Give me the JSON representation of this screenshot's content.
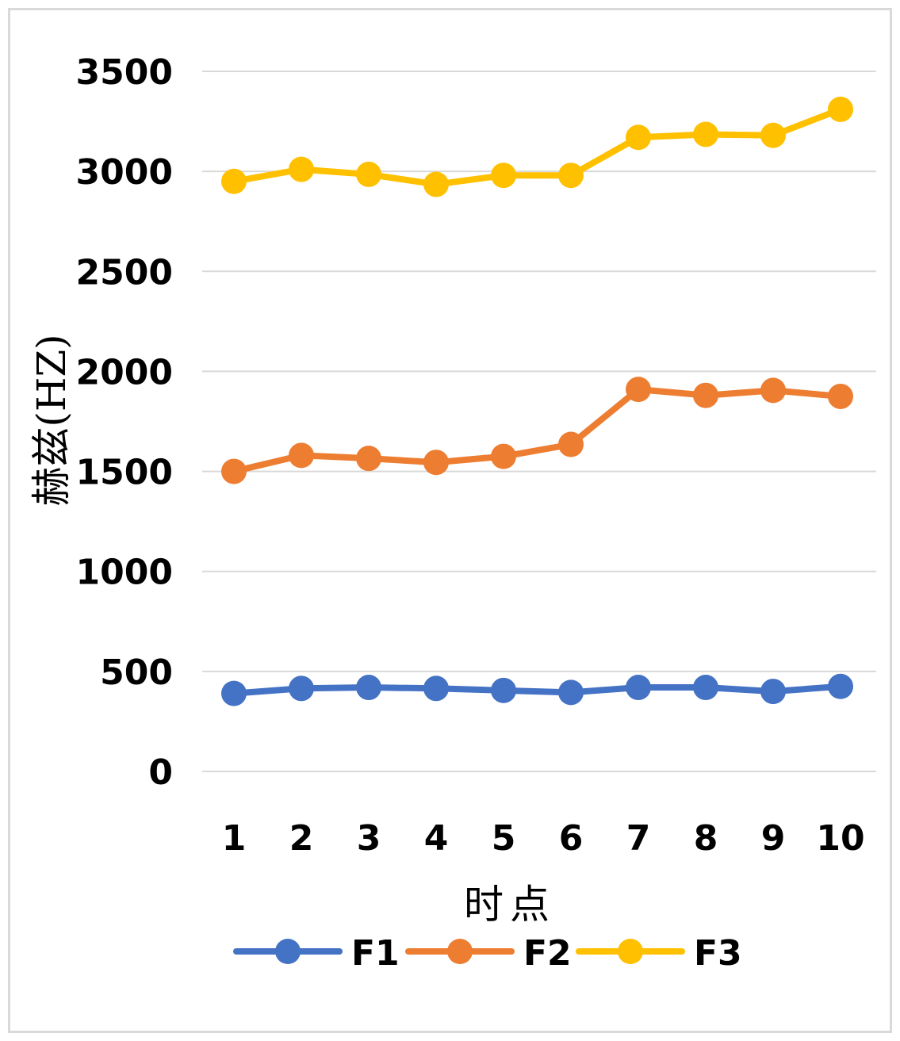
{
  "chart_data": {
    "type": "line",
    "xlabel": "时点",
    "ylabel": "赫兹(HZ)",
    "categories": [
      "1",
      "2",
      "3",
      "4",
      "5",
      "6",
      "7",
      "8",
      "9",
      "10"
    ],
    "ylim": [
      0,
      3500
    ],
    "yticks": [
      "0",
      "500",
      "1000",
      "1500",
      "2000",
      "2500",
      "3000",
      "3500"
    ],
    "grid": true,
    "legend_position": "bottom",
    "series": [
      {
        "name": "F1",
        "color": "#4472c4",
        "values": [
          390,
          415,
          420,
          415,
          405,
          395,
          420,
          420,
          400,
          425
        ]
      },
      {
        "name": "F2",
        "color": "#ed7d31",
        "values": [
          1500,
          1580,
          1565,
          1545,
          1575,
          1635,
          1910,
          1880,
          1905,
          1875
        ]
      },
      {
        "name": "F3",
        "color": "#ffc000",
        "values": [
          2950,
          3010,
          2985,
          2935,
          2980,
          2980,
          3170,
          3185,
          3180,
          3310
        ]
      }
    ]
  }
}
